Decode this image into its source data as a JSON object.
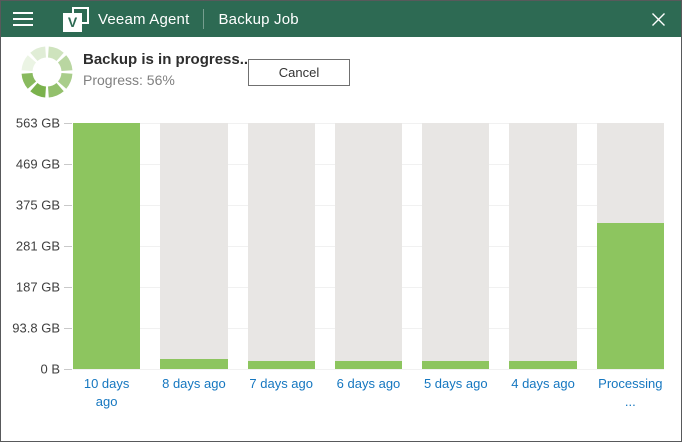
{
  "titlebar": {
    "app_name": "Veeam Agent",
    "view_name": "Backup Job",
    "logo_letter": "V"
  },
  "status": {
    "message": "Backup is in progress...",
    "progress_label": "Progress: 56%",
    "progress_percent": 56,
    "cancel_label": "Cancel"
  },
  "colors": {
    "titlebar_background": "#2d6a53",
    "bar_fill": "#8dc55f",
    "bar_background": "#e8e6e4",
    "x_label_blue": "#1577c0",
    "spinner_green": "#74ae43"
  },
  "chart_data": {
    "type": "bar",
    "title": "",
    "xlabel": "",
    "ylabel": "",
    "unit": "GB",
    "categories": [
      "10 days ago",
      "8 days ago",
      "7 days ago",
      "6 days ago",
      "5 days ago",
      "4 days ago",
      "Processing ..."
    ],
    "values": [
      563,
      23,
      18,
      18,
      18,
      18,
      334
    ],
    "background_full_value": 563,
    "ylim": [
      0,
      563
    ],
    "y_ticks": [
      "563 GB",
      "469 GB",
      "375 GB",
      "281 GB",
      "187 GB",
      "93.8 GB",
      "0 B"
    ],
    "grid": true,
    "legend": "none",
    "note_last_bar": "in progress / processing"
  }
}
